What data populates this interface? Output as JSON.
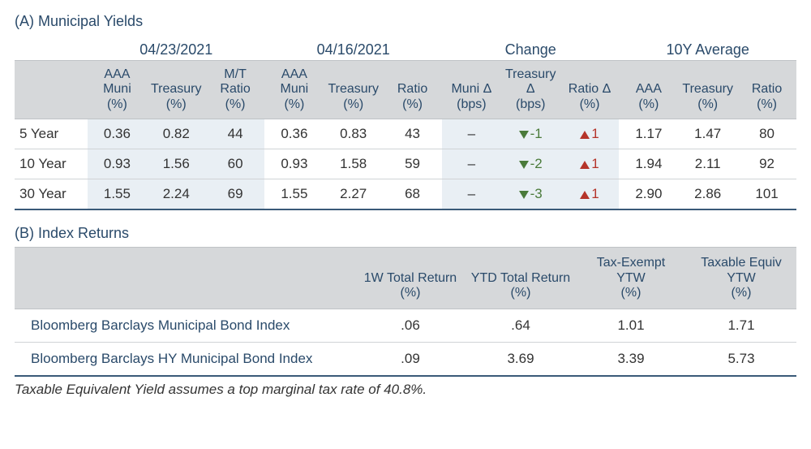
{
  "colors": {
    "heading": "#2a4a6a",
    "header_bg": "#d6d8da",
    "shade_bg": "#e9eff4",
    "row_border": "#d0d3d6",
    "bottom_border": "#3a5a78",
    "down": "#4a7a3a",
    "up": "#b5342a",
    "text": "#333333",
    "background": "#ffffff"
  },
  "tableA": {
    "title": "(A) Municipal Yields",
    "groups": [
      "04/23/2021",
      "04/16/2021",
      "Change",
      "10Y Average"
    ],
    "columns": {
      "g1": [
        "AAA Muni (%)",
        "Treasury (%)",
        "M/T Ratio (%)"
      ],
      "g2": [
        "AAA Muni (%)",
        "Treasury (%)",
        "Ratio (%)"
      ],
      "g3": [
        "Muni Δ (bps)",
        "Treasury Δ (bps)",
        "Ratio Δ (%)"
      ],
      "g4": [
        "AAA (%)",
        "Treasury (%)",
        "Ratio (%)"
      ]
    },
    "rows": [
      {
        "tenor": "5 Year",
        "g1": [
          "0.36",
          "0.82",
          "44"
        ],
        "g2": [
          "0.36",
          "0.83",
          "43"
        ],
        "g3": [
          {
            "text": "–",
            "dir": "none"
          },
          {
            "text": "-1",
            "dir": "down"
          },
          {
            "text": "1",
            "dir": "up"
          }
        ],
        "g4": [
          "1.17",
          "1.47",
          "80"
        ]
      },
      {
        "tenor": "10 Year",
        "g1": [
          "0.93",
          "1.56",
          "60"
        ],
        "g2": [
          "0.93",
          "1.58",
          "59"
        ],
        "g3": [
          {
            "text": "–",
            "dir": "none"
          },
          {
            "text": "-2",
            "dir": "down"
          },
          {
            "text": "1",
            "dir": "up"
          }
        ],
        "g4": [
          "1.94",
          "2.11",
          "92"
        ]
      },
      {
        "tenor": "30 Year",
        "g1": [
          "1.55",
          "2.24",
          "69"
        ],
        "g2": [
          "1.55",
          "2.27",
          "68"
        ],
        "g3": [
          {
            "text": "–",
            "dir": "none"
          },
          {
            "text": "-3",
            "dir": "down"
          },
          {
            "text": "1",
            "dir": "up"
          }
        ],
        "g4": [
          "2.90",
          "2.86",
          "101"
        ]
      }
    ]
  },
  "tableB": {
    "title": "(B) Index Returns",
    "columns": [
      "1W Total Return (%)",
      "YTD Total Return (%)",
      "Tax-Exempt YTW (%)",
      "Taxable Equiv YTW (%)"
    ],
    "rows": [
      {
        "name": "Bloomberg Barclays Municipal Bond Index",
        "vals": [
          ".06",
          ".64",
          "1.01",
          "1.71"
        ]
      },
      {
        "name": "Bloomberg Barclays HY Municipal Bond Index",
        "vals": [
          ".09",
          "3.69",
          "3.39",
          "5.73"
        ]
      }
    ]
  },
  "footnote": "Taxable Equivalent Yield assumes a top marginal tax rate of 40.8%."
}
